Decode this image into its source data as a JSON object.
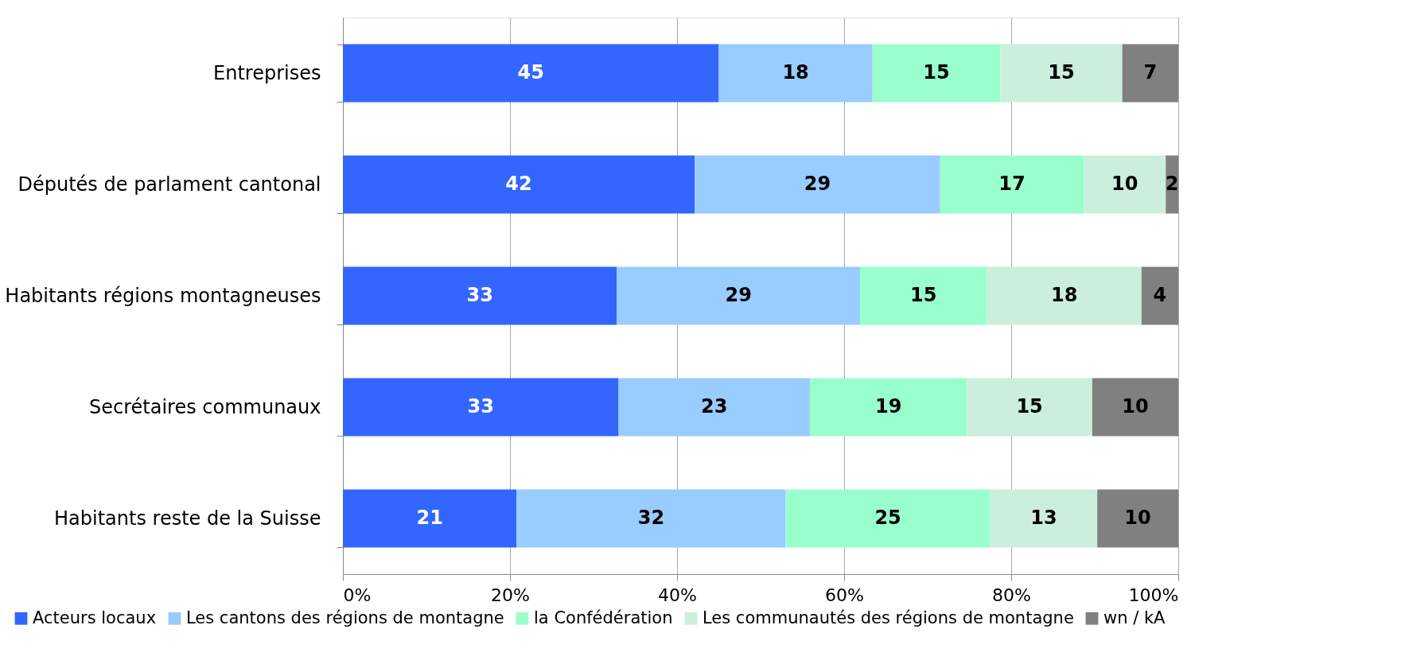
{
  "chart_data": {
    "type": "bar",
    "orientation": "horizontal",
    "stacked": true,
    "categories": [
      "Entreprises",
      "Députés de parlament cantonal",
      "Habitants régions montagneuses",
      "Secrétaires communaux",
      "Habitants reste de la Suisse"
    ],
    "series": [
      {
        "name": "Acteurs locaux",
        "color": "#3366ff",
        "values": [
          45.0,
          42.1,
          32.8,
          33.0,
          20.8
        ],
        "value_labels": [
          "45",
          "42",
          "33",
          "33",
          "21"
        ]
      },
      {
        "name": "Les cantons des régions de montagne",
        "color": "#99ccff",
        "values": [
          18.4,
          29.4,
          29.1,
          22.9,
          32.2
        ],
        "value_labels": [
          "18",
          "29",
          "29",
          "23",
          "32"
        ]
      },
      {
        "name": "la Confédération",
        "color": "#99ffcc",
        "values": [
          15.3,
          17.2,
          15.2,
          18.8,
          24.5
        ],
        "value_labels": [
          "15",
          "17",
          "15",
          "19",
          "25"
        ]
      },
      {
        "name": "Les communautés des régions de montagne",
        "color": "#cceedd",
        "values": [
          14.6,
          9.8,
          18.5,
          15.0,
          12.8
        ],
        "value_labels": [
          "15",
          "10",
          "18",
          "15",
          "13"
        ]
      },
      {
        "name": "wn / kA",
        "color": "#808080",
        "values": [
          6.7,
          1.5,
          4.4,
          10.3,
          9.7
        ],
        "value_labels": [
          "7",
          "2",
          "4",
          "10",
          "10"
        ]
      }
    ],
    "xlim": [
      0,
      100
    ],
    "xticks": [
      {
        "value": 0,
        "label": "0%"
      },
      {
        "value": 20,
        "label": "20%"
      },
      {
        "value": 40,
        "label": "40%"
      },
      {
        "value": 60,
        "label": "60%"
      },
      {
        "value": 80,
        "label": "80%"
      },
      {
        "value": 100,
        "label": "100%"
      }
    ],
    "grid": "x",
    "legend": "bottom"
  }
}
